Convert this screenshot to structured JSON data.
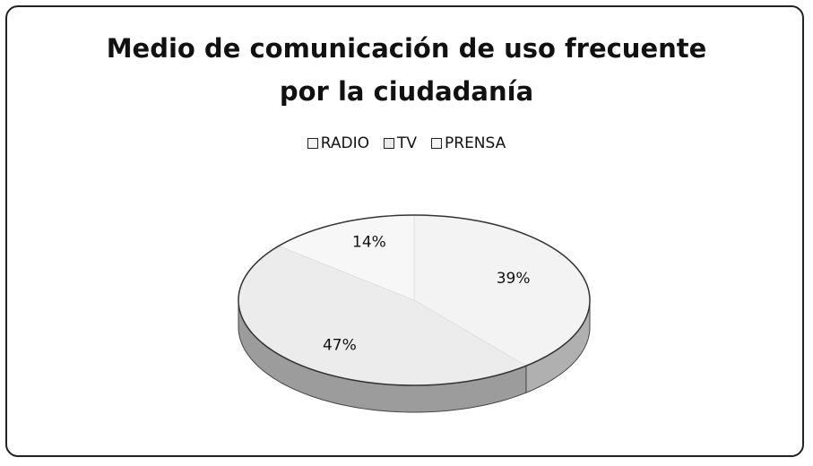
{
  "chart_data": {
    "type": "pie",
    "title": "Medio de comunicación de uso frecuente por la ciudadanía",
    "categories": [
      "RADIO",
      "TV",
      "PRENSA"
    ],
    "values": [
      39,
      47,
      14
    ],
    "value_labels": [
      "39%",
      "47%",
      "14%"
    ],
    "colors": [
      "#f3f3f3",
      "#ececec",
      "#f7f7f7"
    ],
    "legend": "top"
  }
}
